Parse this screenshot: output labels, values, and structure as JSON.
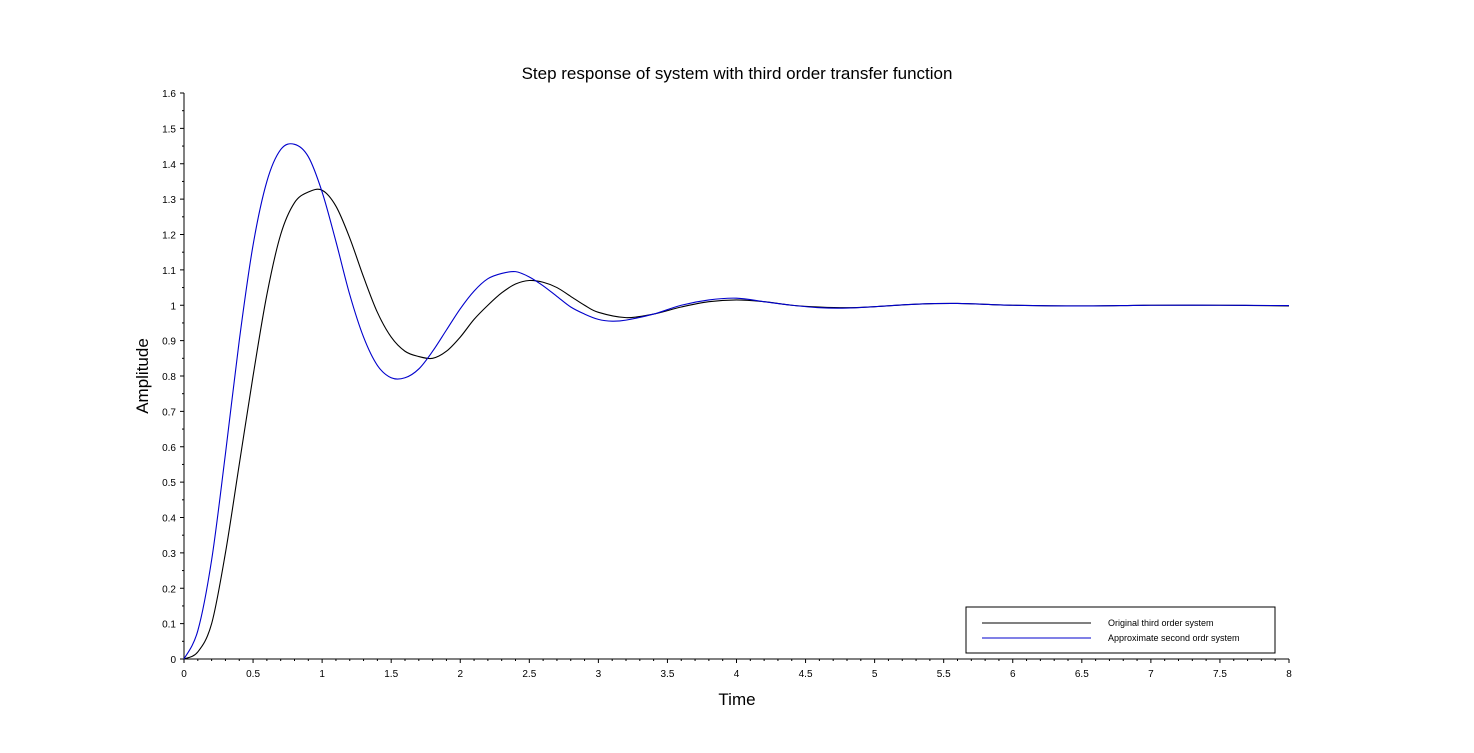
{
  "chart_data": {
    "type": "line",
    "title": "Step response of system with third order transfer function",
    "xlabel": "Time",
    "ylabel": "Amplitude",
    "xlim": [
      0,
      8
    ],
    "ylim": [
      0,
      1.6
    ],
    "x_ticks": [
      0,
      0.5,
      1,
      1.5,
      2,
      2.5,
      3,
      3.5,
      4,
      4.5,
      5,
      5.5,
      6,
      6.5,
      7,
      7.5,
      8
    ],
    "x_tick_labels": [
      "0",
      "0.5",
      "1",
      "1.5",
      "2",
      "2.5",
      "3",
      "3.5",
      "4",
      "4.5",
      "5",
      "5.5",
      "6",
      "6.5",
      "7",
      "7.5",
      "8"
    ],
    "y_ticks": [
      0,
      0.1,
      0.2,
      0.3,
      0.4,
      0.5,
      0.6,
      0.7,
      0.8,
      0.9,
      1,
      1.1,
      1.2,
      1.3,
      1.4,
      1.5,
      1.6
    ],
    "y_tick_labels": [
      "0",
      "0.1",
      "0.2",
      "0.3",
      "0.4",
      "0.5",
      "0.6",
      "0.7",
      "0.8",
      "0.9",
      "1",
      "1.1",
      "1.2",
      "1.3",
      "1.4",
      "1.5",
      "1.6"
    ],
    "grid": false,
    "legend_position": "bottom-right",
    "series": [
      {
        "name": "Original third order system",
        "color": "#000000",
        "x": [
          0,
          0.1,
          0.2,
          0.3,
          0.4,
          0.5,
          0.6,
          0.7,
          0.8,
          0.9,
          1.0,
          1.1,
          1.2,
          1.3,
          1.4,
          1.5,
          1.6,
          1.7,
          1.8,
          1.9,
          2.0,
          2.1,
          2.2,
          2.3,
          2.4,
          2.5,
          2.6,
          2.7,
          2.8,
          2.9,
          3.0,
          3.2,
          3.4,
          3.6,
          3.8,
          4.0,
          4.2,
          4.4,
          4.6,
          4.8,
          5.0,
          5.3,
          5.6,
          6.0,
          6.5,
          7.0,
          7.5,
          8.0
        ],
        "y": [
          0,
          0.02,
          0.1,
          0.3,
          0.55,
          0.8,
          1.03,
          1.2,
          1.29,
          1.32,
          1.325,
          1.28,
          1.19,
          1.08,
          0.98,
          0.91,
          0.87,
          0.855,
          0.85,
          0.87,
          0.91,
          0.96,
          1.0,
          1.035,
          1.06,
          1.07,
          1.065,
          1.05,
          1.025,
          1.0,
          0.98,
          0.965,
          0.975,
          0.995,
          1.01,
          1.015,
          1.01,
          1.0,
          0.995,
          0.993,
          0.996,
          1.003,
          1.005,
          1.0,
          0.998,
          1.0,
          1.0,
          0.998
        ]
      },
      {
        "name": "Approximate second ordr system",
        "color": "#0000cc",
        "x": [
          0,
          0.1,
          0.2,
          0.3,
          0.4,
          0.5,
          0.6,
          0.7,
          0.8,
          0.9,
          1.0,
          1.1,
          1.2,
          1.3,
          1.4,
          1.5,
          1.6,
          1.7,
          1.8,
          1.9,
          2.0,
          2.1,
          2.2,
          2.3,
          2.4,
          2.5,
          2.6,
          2.7,
          2.8,
          2.9,
          3.0,
          3.1,
          3.2,
          3.4,
          3.6,
          3.8,
          4.0,
          4.2,
          4.4,
          4.6,
          4.8,
          5.0,
          5.3,
          5.6,
          6.0,
          6.5,
          7.0,
          7.5,
          8.0
        ],
        "y": [
          0,
          0.08,
          0.28,
          0.58,
          0.9,
          1.17,
          1.35,
          1.44,
          1.455,
          1.42,
          1.32,
          1.18,
          1.03,
          0.91,
          0.83,
          0.795,
          0.795,
          0.82,
          0.87,
          0.93,
          0.99,
          1.04,
          1.075,
          1.09,
          1.095,
          1.08,
          1.055,
          1.025,
          0.995,
          0.975,
          0.96,
          0.955,
          0.958,
          0.975,
          1.0,
          1.015,
          1.02,
          1.01,
          1.0,
          0.993,
          0.992,
          0.996,
          1.003,
          1.005,
          1.0,
          0.998,
          1.0,
          1.0,
          0.999
        ]
      }
    ]
  }
}
